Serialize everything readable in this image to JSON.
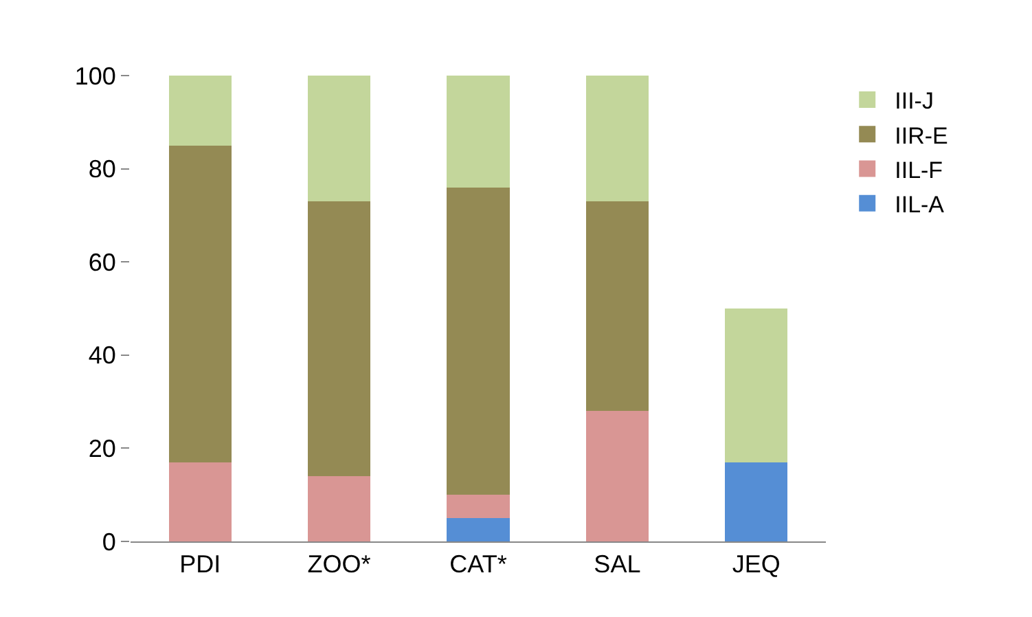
{
  "chart_data": {
    "type": "bar",
    "stacked": true,
    "categories": [
      "PDI",
      "ZOO*",
      "CAT*",
      "SAL",
      "JEQ"
    ],
    "series": [
      {
        "name": "IIL-A",
        "color": "#558ed5",
        "values": [
          0,
          0,
          5,
          0,
          17
        ]
      },
      {
        "name": "IIL-F",
        "color": "#d99694",
        "values": [
          17,
          14,
          5,
          28,
          0
        ]
      },
      {
        "name": "IIR-E",
        "color": "#948a54",
        "values": [
          68,
          59,
          66,
          45,
          0
        ]
      },
      {
        "name": "III-J",
        "color": "#c3d69b",
        "values": [
          15,
          27,
          24,
          27,
          33
        ]
      }
    ],
    "ylim": [
      0,
      100
    ],
    "yticks": [
      0,
      20,
      40,
      60,
      80,
      100
    ],
    "grid": false,
    "legend": "top right"
  }
}
